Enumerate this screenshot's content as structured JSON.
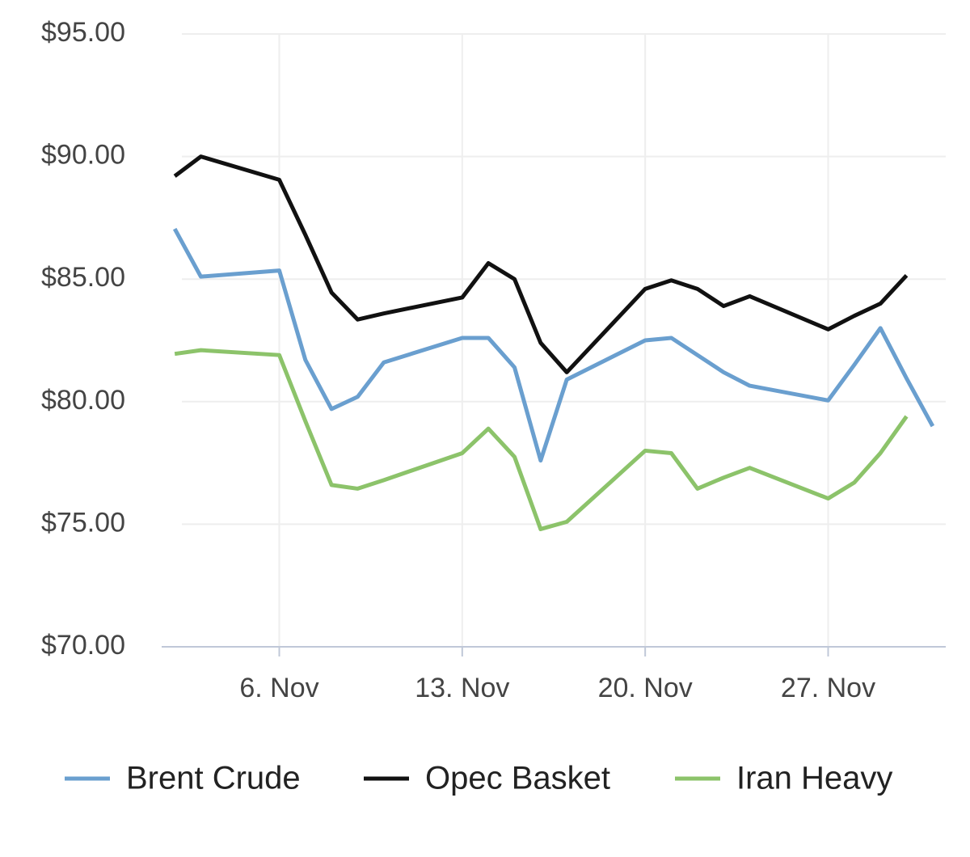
{
  "chart_data": {
    "type": "line",
    "x": [
      2,
      3,
      6,
      7,
      8,
      9,
      10,
      13,
      14,
      15,
      16,
      17,
      20,
      21,
      22,
      23,
      24,
      27,
      28,
      29,
      30,
      31
    ],
    "series": [
      {
        "name": "Brent Crude",
        "color": "#6a9fcf",
        "values": [
          87.05,
          85.1,
          85.35,
          81.7,
          79.7,
          80.2,
          81.6,
          82.6,
          82.6,
          81.4,
          77.6,
          80.9,
          82.5,
          82.6,
          81.9,
          81.2,
          80.65,
          80.05,
          81.5,
          83.0,
          80.95,
          79.0
        ]
      },
      {
        "name": "Opec Basket",
        "color": "#111111",
        "values": [
          89.2,
          90.0,
          89.05,
          86.8,
          84.45,
          83.35,
          83.6,
          84.25,
          85.65,
          85.0,
          82.4,
          81.2,
          84.6,
          84.95,
          84.6,
          83.9,
          84.3,
          82.95,
          83.5,
          84.0,
          85.15,
          null
        ]
      },
      {
        "name": "Iran Heavy",
        "color": "#8cc36a",
        "values": [
          81.95,
          82.1,
          81.9,
          79.2,
          76.6,
          76.45,
          76.8,
          77.9,
          78.9,
          77.75,
          74.8,
          75.1,
          78.0,
          77.9,
          76.45,
          76.9,
          77.3,
          76.05,
          76.7,
          77.9,
          79.4,
          null
        ]
      }
    ],
    "xlim": [
      1.5,
      31.5
    ],
    "xticks": [
      {
        "value": 6,
        "label": "6. Nov"
      },
      {
        "value": 13,
        "label": "13. Nov"
      },
      {
        "value": 20,
        "label": "20. Nov"
      },
      {
        "value": 27,
        "label": "27. Nov"
      }
    ],
    "ylim": [
      70,
      95
    ],
    "yticks": [
      {
        "value": 70,
        "label": "$70.00"
      },
      {
        "value": 75,
        "label": "$75.00"
      },
      {
        "value": 80,
        "label": "$80.00"
      },
      {
        "value": 85,
        "label": "$85.00"
      },
      {
        "value": 90,
        "label": "$90.00"
      },
      {
        "value": 95,
        "label": "$95.00"
      }
    ],
    "grid": true,
    "legend": "bottom"
  }
}
